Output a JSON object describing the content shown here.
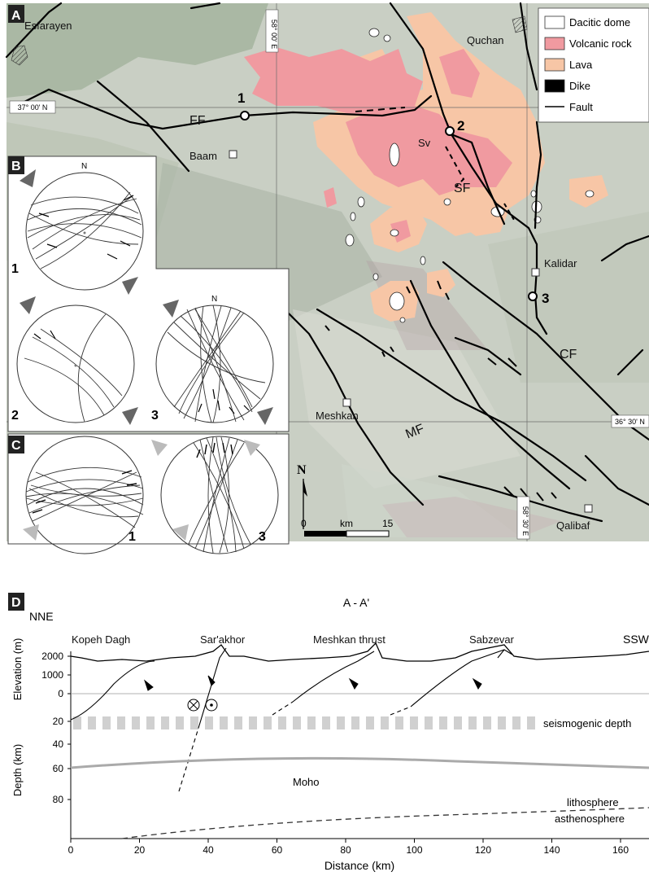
{
  "panels": {
    "a": "A",
    "b": "B",
    "c": "C",
    "d": "D"
  },
  "legend": [
    {
      "label": "Dacitic dome",
      "color": "#ffffff"
    },
    {
      "label": "Volcanic rock",
      "color": "#f09aa0"
    },
    {
      "label": "Lava",
      "color": "#f7c6a6"
    },
    {
      "label": "Dike",
      "color": "#000000"
    },
    {
      "label": "Fault",
      "color": "#000000"
    }
  ],
  "places": {
    "esfarayen": "Esfarayen",
    "quchan": "Quchan",
    "baam": "Baam",
    "kalidar": "Kalidar",
    "meshkan": "Meshkan",
    "qalibaf": "Qalibaf",
    "sv": "Sv"
  },
  "faults": {
    "ff": "FF",
    "sf": "SF",
    "cf": "CF",
    "mf": "MF"
  },
  "sites": {
    "s1": "1",
    "s2": "2",
    "s3": "3"
  },
  "coords": {
    "lon_58_00": "58° 00' E",
    "lat_37_00": "37° 00' N",
    "lat_36_30": "36° 30' N",
    "lon_58_30": "58° 30' E"
  },
  "north": "N",
  "scalebar": {
    "zero": "0",
    "unit": "km",
    "max": "15"
  },
  "stereonets": {
    "b1": "1",
    "b2": "2",
    "b3": "3",
    "b1_n": "N",
    "b3_n": "N",
    "c1": "1",
    "c3": "3"
  },
  "section": {
    "title": "A - A'",
    "nne": "NNE",
    "ssw": "SSW",
    "features": [
      "Kopeh Dagh",
      "Sar'akhor",
      "Meshkan thrust",
      "Sabzevar"
    ],
    "seismogenic": "seismogenic depth",
    "moho": "Moho",
    "lithosphere": "lithosphere",
    "asthenosphere": "asthenosphere",
    "elevation_label": "Elevation (m)",
    "depth_label": "Depth (km)",
    "xlabel": "Distance (km)",
    "elev_ticks": [
      "2000",
      "1000",
      "0"
    ],
    "depth_ticks": [
      "20",
      "40",
      "60",
      "80"
    ],
    "x_ticks": [
      "0",
      "20",
      "40",
      "60",
      "80",
      "100",
      "120",
      "140",
      "160"
    ]
  }
}
